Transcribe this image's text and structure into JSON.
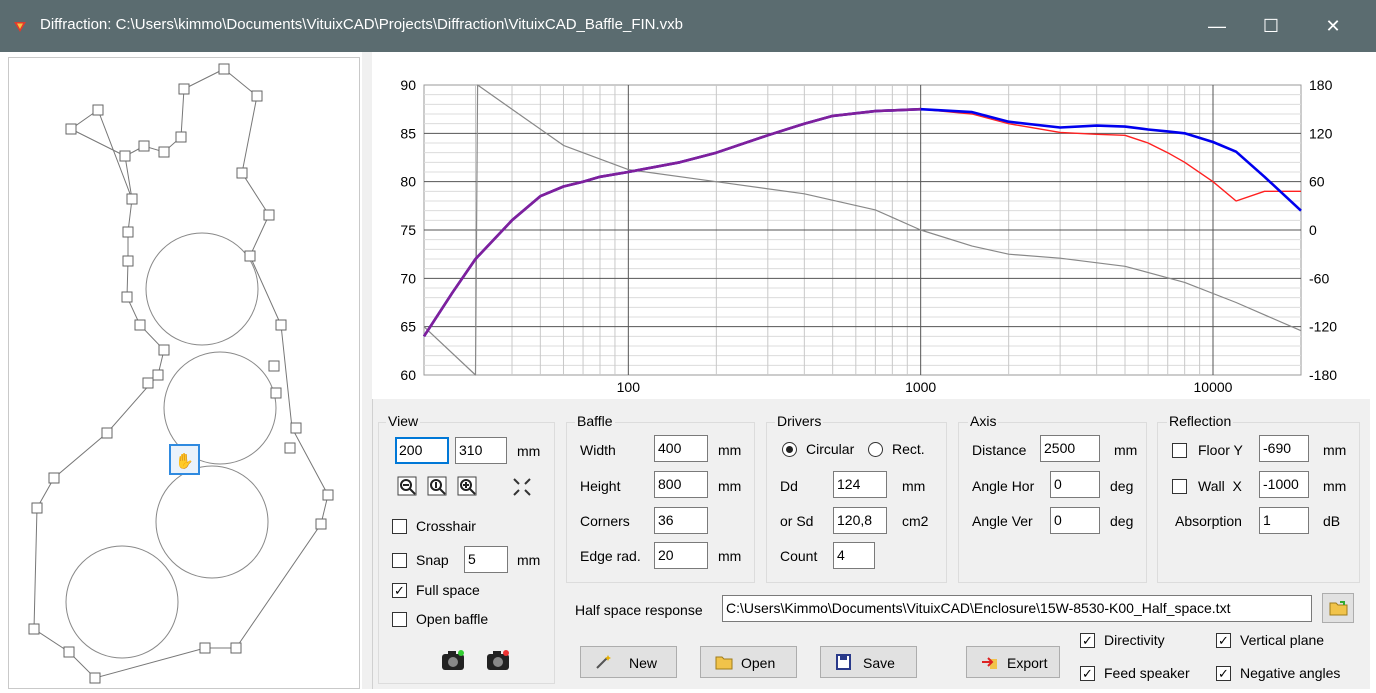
{
  "window": {
    "title": "Diffraction: C:\\Users\\kimmo\\Documents\\VituixCAD\\Projects\\Diffraction\\VituixCAD_Baffle_FIN.vxb",
    "minimize": "—",
    "maximize": "☐",
    "close": "✕"
  },
  "chart_data": {
    "type": "line",
    "x_scale": "log",
    "xlim": [
      20,
      20000
    ],
    "ylim": [
      60,
      90
    ],
    "y2lim": [
      -180,
      180
    ],
    "x_ticks": [
      "100",
      "1000",
      "10000"
    ],
    "y_ticks": [
      "90",
      "85",
      "80",
      "75",
      "70",
      "65",
      "60"
    ],
    "y2_ticks": [
      "180",
      "120",
      "60",
      "0",
      "-60",
      "-120",
      "-180"
    ],
    "grid": true,
    "series": [
      {
        "color": "#0000ee",
        "x": [
          20,
          25,
          30,
          40,
          50,
          60,
          70,
          80,
          100,
          150,
          200,
          300,
          400,
          500,
          700,
          1000,
          1500,
          2000,
          3000,
          4000,
          5000,
          6000,
          7000,
          8000,
          10000,
          12000,
          15000,
          20000
        ],
        "values": [
          64,
          68.5,
          72,
          76,
          78.5,
          79.5,
          80,
          80.5,
          81,
          82,
          83,
          84.8,
          86,
          86.8,
          87.3,
          87.5,
          87.2,
          86.2,
          85.6,
          85.8,
          85.7,
          85.4,
          85.2,
          85,
          84.1,
          83.1,
          80.5,
          77
        ]
      },
      {
        "color": "#ff2020",
        "x": [
          20,
          25,
          30,
          40,
          50,
          60,
          70,
          80,
          100,
          150,
          200,
          300,
          400,
          500,
          700,
          1000,
          1500,
          2000,
          3000,
          4000,
          5000,
          6000,
          7000,
          8000,
          10000,
          12000,
          15000,
          20000
        ],
        "values": [
          64,
          68.5,
          72,
          76,
          78.5,
          79.5,
          80,
          80.5,
          81,
          82,
          83,
          84.8,
          86,
          86.8,
          87.3,
          87.5,
          87,
          86,
          85.1,
          84.9,
          84.8,
          84,
          83,
          82,
          80,
          78,
          79,
          79
        ]
      },
      {
        "color": "#888888",
        "axis": "right",
        "x": [
          20,
          30,
          30.5,
          40,
          60,
          100,
          200,
          400,
          700,
          1000,
          1500,
          2000,
          3000,
          5000,
          8000,
          12000,
          20000
        ],
        "values": [
          -120,
          -180,
          180,
          150,
          105,
          75,
          60,
          45,
          25,
          0,
          -20,
          -30,
          -35,
          -45,
          -65,
          -90,
          -125
        ]
      }
    ]
  },
  "view": {
    "title": "View",
    "w": "200",
    "h": "310",
    "unit": "mm",
    "crosshair": "Crosshair",
    "snap": "Snap",
    "snap_val": "5",
    "snap_unit": "mm",
    "full_space": "Full space",
    "open_baffle": "Open baffle"
  },
  "baffle": {
    "title": "Baffle",
    "width_label": "Width",
    "width": "400",
    "height_label": "Height",
    "height": "800",
    "corners_label": "Corners",
    "corners": "36",
    "edge_label": "Edge rad.",
    "edge": "20",
    "unit": "mm"
  },
  "drivers": {
    "title": "Drivers",
    "circular": "Circular",
    "rect": "Rect.",
    "dd_label": "Dd",
    "dd": "124",
    "dd_unit": "mm",
    "sd_label": "or Sd",
    "sd": "120,8",
    "sd_unit": "cm2",
    "count_label": "Count",
    "count": "4"
  },
  "axis": {
    "title": "Axis",
    "distance_label": "Distance",
    "distance": "2500",
    "distance_unit": "mm",
    "hor_label": "Angle Hor",
    "hor": "0",
    "ver_label": "Angle Ver",
    "ver": "0",
    "deg": "deg"
  },
  "reflection": {
    "title": "Reflection",
    "floor_label": "Floor Y",
    "floor": "-690",
    "wall_label": "Wall  X",
    "wall": "-1000",
    "mm": "mm",
    "abs_label": "Absorption",
    "abs": "1",
    "abs_unit": "dB"
  },
  "half_space": {
    "label": "Half space response",
    "path": "C:\\Users\\Kimmo\\Documents\\VituixCAD\\Enclosure\\15W-8530-K00_Half_space.txt"
  },
  "buttons": {
    "new": "New",
    "open": "Open",
    "save": "Save",
    "export": "Export"
  },
  "options": {
    "directivity": "Directivity",
    "feed": "Feed speaker",
    "vertical": "Vertical plane",
    "negative": "Negative angles"
  },
  "colors": {
    "title_bar": "#5b6c70",
    "accent": "#0078d7"
  }
}
